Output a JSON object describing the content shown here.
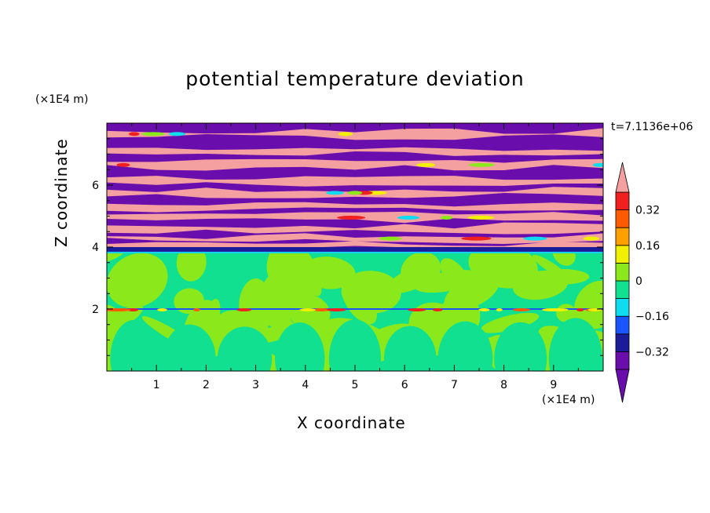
{
  "chart_data": {
    "type": "heatmap",
    "title": "potential temperature deviation",
    "xlabel": "X coordinate",
    "ylabel": "Z coordinate",
    "x_unit": "(×1E4 m)",
    "y_unit": "(×1E4 m)",
    "time_label": "t=7.1136e+06",
    "xlim": [
      0,
      10
    ],
    "ylim": [
      0,
      8
    ],
    "x_ticks": [
      "1",
      "2",
      "3",
      "4",
      "5",
      "6",
      "7",
      "8",
      "9"
    ],
    "y_ticks": [
      "2",
      "4",
      "6"
    ],
    "colorbar": {
      "extend": "both",
      "levels": [
        -0.4,
        -0.32,
        -0.24,
        -0.16,
        -0.08,
        0,
        0.08,
        0.16,
        0.24,
        0.32,
        0.4
      ],
      "tick_labels": [
        "0.32",
        "0.16",
        "0",
        "−0.16",
        "−0.32"
      ],
      "tick_values": [
        0.32,
        0.16,
        0,
        -0.16,
        -0.32
      ],
      "colors": [
        "#6a0dad",
        "#1c1c9a",
        "#1a55ff",
        "#10dcf0",
        "#10e090",
        "#8be81a",
        "#f0f000",
        "#ffa000",
        "#ff5a00",
        "#f02020",
        "#f4a0a0"
      ]
    },
    "regions": {
      "upper_layer": {
        "z_range": [
          3.8,
          8
        ],
        "dominant_values": [
          -0.4,
          0.4
        ],
        "description_colors": [
          "#6a0dad",
          "#f4a0a0"
        ]
      },
      "lower_layer": {
        "z_range": [
          0,
          3.8
        ],
        "dominant_values": [
          -0.04,
          0.04
        ],
        "description_colors": [
          "#10e090",
          "#8be81a"
        ]
      },
      "interface_line": {
        "z": 2.0
      }
    }
  }
}
